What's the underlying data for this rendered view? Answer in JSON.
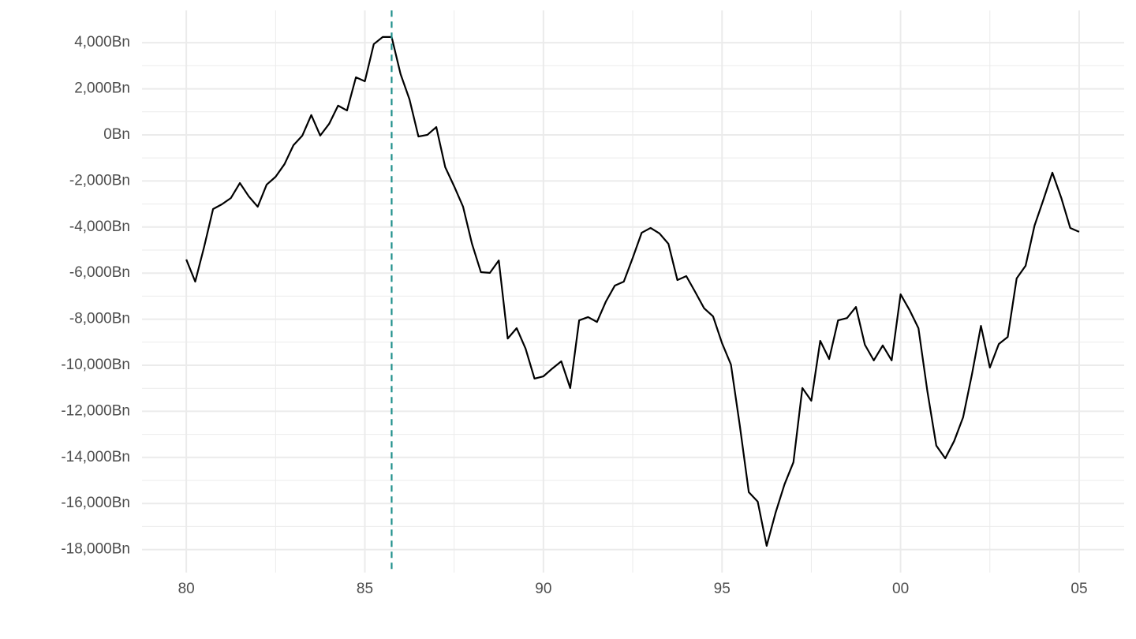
{
  "chart_data": {
    "type": "line",
    "x": [
      1980,
      1980.25,
      1980.5,
      1980.75,
      1981,
      1981.25,
      1981.5,
      1981.75,
      1982,
      1982.25,
      1982.5,
      1982.75,
      1983,
      1983.25,
      1983.5,
      1983.75,
      1984,
      1984.25,
      1984.5,
      1984.75,
      1985,
      1985.25,
      1985.5,
      1985.75,
      1986,
      1986.25,
      1986.5,
      1986.75,
      1987,
      1987.25,
      1987.5,
      1987.75,
      1988,
      1988.25,
      1988.5,
      1988.75,
      1989,
      1989.25,
      1989.5,
      1989.75,
      1990,
      1990.25,
      1990.5,
      1990.75,
      1991,
      1991.25,
      1991.5,
      1991.75,
      1992,
      1992.25,
      1992.5,
      1992.75,
      1993,
      1993.25,
      1993.5,
      1993.75,
      1994,
      1994.25,
      1994.5,
      1994.75,
      1995,
      1995.25,
      1995.5,
      1995.75,
      1996,
      1996.25,
      1996.5,
      1996.75,
      1997,
      1997.25,
      1997.5,
      1997.75,
      1998,
      1998.25,
      1998.5,
      1998.75,
      1999,
      1999.25,
      1999.5,
      1999.75,
      2000,
      2000.25,
      2000.5,
      2000.75,
      2001,
      2001.25,
      2001.5,
      2001.75,
      2002,
      2002.25,
      2002.5,
      2002.75,
      2003,
      2003.25,
      2003.5,
      2003.75,
      2004,
      2004.25,
      2004.5,
      2004.75,
      2005
    ],
    "values": [
      -5410,
      -6370,
      -4860,
      -3220,
      -3010,
      -2740,
      -2090,
      -2670,
      -3120,
      -2160,
      -1820,
      -1270,
      -450,
      -30,
      860,
      -30,
      480,
      1270,
      1060,
      2500,
      2330,
      3940,
      4250,
      4250,
      2640,
      1540,
      -70,
      0,
      340,
      -1400,
      -2230,
      -3120,
      -4730,
      -5960,
      -5990,
      -5450,
      -8840,
      -8390,
      -9280,
      -10580,
      -10480,
      -10140,
      -9830,
      -10990,
      -8050,
      -7910,
      -8120,
      -7230,
      -6540,
      -6370,
      -5340,
      -4250,
      -4040,
      -4280,
      -4730,
      -6300,
      -6130,
      -6820,
      -7530,
      -7880,
      -9040,
      -9970,
      -12640,
      -15510,
      -15920,
      -17840,
      -16400,
      -15170,
      -14210,
      -10990,
      -11540,
      -8940,
      -9730,
      -8050,
      -7950,
      -7470,
      -9110,
      -9790,
      -9140,
      -9790,
      -6920,
      -7600,
      -8390,
      -11130,
      -13490,
      -14040,
      -13290,
      -12260,
      -10380,
      -8290,
      -10100,
      -9080,
      -8770,
      -6230,
      -5680,
      -3940,
      -2810,
      -1640,
      -2740,
      -4040,
      -4210
    ],
    "color": "#000000",
    "vline": {
      "x": 1985.75,
      "color": "#21908C"
    },
    "xlim": [
      1978.76,
      2006.26
    ],
    "xticks": [
      {
        "value": 1980,
        "label": "80"
      },
      {
        "value": 1985,
        "label": "85"
      },
      {
        "value": 1990,
        "label": "90"
      },
      {
        "value": 1995,
        "label": "95"
      },
      {
        "value": 2000,
        "label": "00"
      },
      {
        "value": 2005,
        "label": "05"
      }
    ],
    "ylim": [
      -19000,
      5400
    ],
    "yticks": [
      {
        "value": -18000,
        "label": "-18,000Bn"
      },
      {
        "value": -16000,
        "label": "-16,000Bn"
      },
      {
        "value": -14000,
        "label": "-14,000Bn"
      },
      {
        "value": -12000,
        "label": "-12,000Bn"
      },
      {
        "value": -10000,
        "label": "-10,000Bn"
      },
      {
        "value": -8000,
        "label": "-8,000Bn"
      },
      {
        "value": -6000,
        "label": "-6,000Bn"
      },
      {
        "value": -4000,
        "label": "-4,000Bn"
      },
      {
        "value": -2000,
        "label": "-2,000Bn"
      },
      {
        "value": 0,
        "label": "0Bn"
      },
      {
        "value": 2000,
        "label": "2,000Bn"
      },
      {
        "value": 4000,
        "label": "4,000Bn"
      }
    ],
    "grid": true
  }
}
